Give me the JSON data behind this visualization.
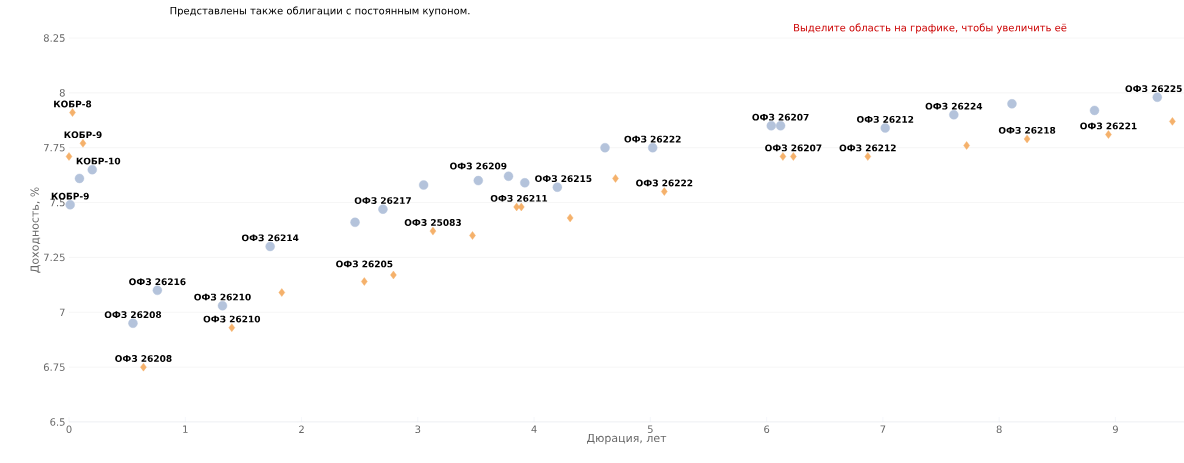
{
  "chart_data": {
    "type": "scatter",
    "xlabel": "Дюрация, лет",
    "ylabel": "Доходность, %",
    "xlim": [
      0,
      9.59
    ],
    "ylim": [
      6.5,
      8.25
    ],
    "xticks": [
      0,
      1,
      2,
      3,
      4,
      5,
      6,
      7,
      8,
      9
    ],
    "yticks": [
      6.5,
      6.75,
      7,
      7.25,
      7.5,
      7.75,
      8,
      8.25
    ],
    "grid": "y",
    "series": [
      {
        "color": "#b4c3db",
        "marker": "circle",
        "x": [
          0.01,
          0.09,
          0.2,
          0.55,
          0.76,
          1.32,
          1.73,
          2.46,
          2.7,
          3.05,
          3.52,
          3.78,
          3.92,
          4.2,
          4.61,
          5.02,
          6.04,
          6.12,
          7.02,
          7.61,
          8.11,
          8.82,
          9.36
        ],
        "values": [
          7.49,
          7.61,
          7.65,
          6.95,
          7.1,
          7.03,
          7.3,
          7.41,
          7.47,
          7.58,
          7.6,
          7.62,
          7.59,
          7.57,
          7.75,
          7.75,
          7.85,
          7.85,
          7.84,
          7.9,
          7.95,
          7.92,
          7.98
        ]
      },
      {
        "color": "#f5b16b",
        "marker": "diamond",
        "x": [
          0.0,
          0.03,
          0.12,
          0.64,
          1.4,
          1.83,
          2.54,
          2.79,
          3.13,
          3.47,
          3.85,
          3.89,
          4.31,
          4.7,
          5.12,
          6.14,
          6.23,
          6.87,
          7.72,
          8.24,
          8.94,
          9.49
        ],
        "values": [
          7.71,
          7.91,
          7.77,
          6.75,
          6.93,
          7.09,
          7.14,
          7.17,
          7.37,
          7.35,
          7.48,
          7.48,
          7.43,
          7.61,
          7.55,
          7.71,
          7.71,
          7.71,
          7.76,
          7.79,
          7.81,
          7.87
        ]
      }
    ],
    "annotations": [
      "Представлены также облигации с постоянным купоном.",
      "Выделите область на графике, чтобы увеличить её",
      {
        "text": "КОБР-9",
        "x": 0.01,
        "y": 7.49
      },
      {
        "text": "КОБР-10",
        "x": 0.2,
        "y": 7.65
      },
      {
        "text": "ОФЗ 26208",
        "x": 0.55,
        "y": 6.95
      },
      {
        "text": "ОФЗ 26216",
        "x": 0.76,
        "y": 7.1
      },
      {
        "text": "ОФЗ 26210",
        "x": 1.32,
        "y": 7.03
      },
      {
        "text": "ОФЗ 26214",
        "x": 1.73,
        "y": 7.3
      },
      {
        "text": "ОФЗ 26217",
        "x": 2.7,
        "y": 7.47
      },
      {
        "text": "ОФЗ 26209",
        "x": 3.52,
        "y": 7.6
      },
      {
        "text": "ОФЗ 26215",
        "x": 4.2,
        "y": 7.57
      },
      {
        "text": "ОФЗ 26222",
        "x": 5.02,
        "y": 7.75
      },
      {
        "text": "ОФЗ 26207",
        "x": 6.12,
        "y": 7.85
      },
      {
        "text": "ОФЗ 26212",
        "x": 7.02,
        "y": 7.84
      },
      {
        "text": "ОФЗ 26224",
        "x": 7.61,
        "y": 7.9
      },
      {
        "text": "ОФЗ 26225",
        "x": 9.36,
        "y": 7.98
      },
      {
        "text": "КОБР-8",
        "x": 0.03,
        "y": 7.91
      },
      {
        "text": "КОБР-9",
        "x": 0.12,
        "y": 7.77
      },
      {
        "text": "ОФЗ 26208",
        "x": 0.64,
        "y": 6.75
      },
      {
        "text": "ОФЗ 26210",
        "x": 1.4,
        "y": 6.93
      },
      {
        "text": "ОФЗ 26205",
        "x": 2.54,
        "y": 7.14
      },
      {
        "text": "ОФЗ 25083",
        "x": 3.13,
        "y": 7.37
      },
      {
        "text": "ОФЗ 26211",
        "x": 3.87,
        "y": 7.48
      },
      {
        "text": "ОФЗ 26222",
        "x": 5.12,
        "y": 7.55
      },
      {
        "text": "ОФЗ 26207",
        "x": 6.23,
        "y": 7.71
      },
      {
        "text": "ОФЗ 26212",
        "x": 6.87,
        "y": 7.71
      },
      {
        "text": "ОФЗ 26218",
        "x": 8.24,
        "y": 7.79
      },
      {
        "text": "ОФЗ 26221",
        "x": 8.94,
        "y": 7.81
      }
    ]
  }
}
